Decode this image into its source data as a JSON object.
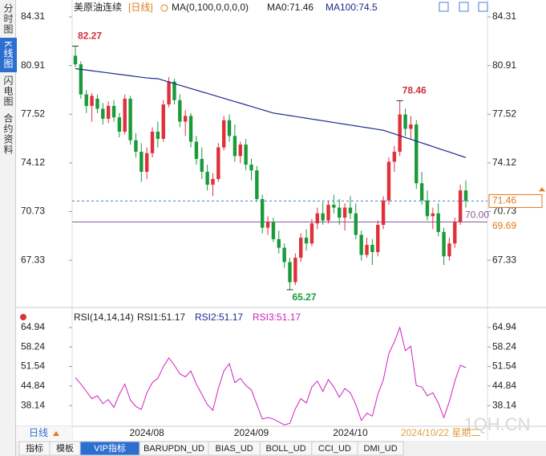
{
  "sidebar_tabs": [
    "分时图",
    "K线图",
    "闪电图",
    "合约资料"
  ],
  "chart_data": [
    {
      "type": "candlestick",
      "title": "美原油连续",
      "period": "[日线]",
      "indicator": "MA(0,100,0,0,0,0)",
      "ma_labels": [
        "MA0:71.46",
        "MA100:74.5"
      ],
      "categories": [
        null,
        null,
        null,
        null,
        null,
        null,
        null,
        null,
        null,
        null,
        null,
        null,
        null,
        null,
        null,
        null,
        null,
        null,
        null,
        null,
        null,
        null,
        null,
        null,
        null,
        null,
        null,
        null,
        null,
        null,
        null,
        null,
        null,
        null,
        null,
        null,
        null,
        null,
        null,
        null,
        null,
        null,
        null,
        null,
        null,
        null,
        null,
        null,
        null,
        null,
        null,
        null,
        null,
        null,
        null,
        null,
        null,
        null,
        null,
        null,
        null,
        null,
        null,
        null,
        null,
        null,
        null,
        null,
        null,
        null,
        null,
        null
      ],
      "xticks": [
        {
          "value": 13,
          "label": "2024/08"
        },
        {
          "value": 32,
          "label": "2024/09"
        },
        {
          "value": 50,
          "label": "2024/10"
        }
      ],
      "open": [
        81.6,
        81.0,
        78.9,
        78.1,
        78.6,
        77.9,
        77.2,
        78.1,
        77.3,
        76.3,
        78.6,
        75.7,
        74.9,
        73.5,
        74.8,
        76.3,
        75.8,
        78.2,
        79.8,
        78.5,
        77.0,
        77.4,
        75.6,
        74.4,
        73.5,
        72.6,
        73.0,
        75.2,
        77.1,
        76.0,
        74.6,
        75.4,
        74.0,
        73.6,
        71.6,
        69.6,
        70.0,
        68.8,
        68.2,
        67.2,
        65.8,
        67.5,
        68.9,
        68.5,
        69.9,
        70.6,
        70.1,
        71.2,
        71.0,
        70.3,
        71.0,
        70.6,
        69.1,
        67.7,
        68.4,
        67.9,
        69.8,
        71.5,
        74.2,
        74.9,
        77.5,
        76.5,
        76.8,
        72.7,
        71.5,
        70.4,
        70.6,
        69.3,
        67.6,
        68.5,
        70.0,
        72.2
      ],
      "high": [
        82.27,
        81.2,
        79.2,
        79.0,
        78.9,
        78.3,
        78.4,
        78.5,
        77.6,
        78.9,
        78.8,
        76.2,
        75.5,
        75.2,
        76.6,
        77.0,
        78.5,
        80.1,
        80.0,
        78.9,
        77.8,
        77.6,
        76.0,
        75.2,
        74.0,
        73.4,
        75.5,
        77.4,
        77.5,
        76.8,
        75.6,
        75.8,
        74.4,
        73.9,
        71.9,
        70.4,
        70.3,
        69.4,
        68.5,
        67.5,
        67.8,
        69.2,
        69.5,
        70.2,
        71.0,
        71.4,
        71.5,
        71.9,
        71.6,
        71.3,
        71.8,
        71.3,
        69.4,
        68.9,
        68.8,
        70.1,
        71.8,
        74.5,
        75.3,
        78.46,
        77.9,
        77.4,
        77.1,
        73.5,
        72.2,
        71.0,
        71.3,
        69.6,
        68.9,
        70.3,
        72.6,
        72.9
      ],
      "low": [
        80.8,
        78.6,
        77.6,
        77.0,
        77.6,
        76.8,
        76.9,
        77.0,
        75.9,
        76.1,
        75.4,
        74.5,
        72.8,
        73.0,
        74.5,
        75.2,
        75.6,
        78.0,
        78.2,
        76.6,
        76.0,
        75.2,
        74.0,
        73.0,
        72.2,
        71.8,
        72.8,
        75.0,
        75.6,
        74.2,
        74.1,
        73.6,
        72.9,
        71.4,
        69.2,
        69.1,
        68.6,
        67.8,
        66.8,
        65.27,
        65.6,
        67.2,
        68.0,
        68.3,
        69.5,
        69.8,
        69.9,
        70.6,
        69.8,
        69.4,
        70.2,
        68.8,
        67.3,
        67.5,
        67.0,
        67.6,
        69.5,
        71.2,
        73.5,
        74.6,
        76.0,
        75.8,
        72.3,
        71.2,
        70.1,
        69.5,
        69.0,
        67.0,
        67.3,
        68.2,
        69.8,
        71.0
      ],
      "close": [
        81.0,
        78.9,
        78.1,
        78.8,
        77.9,
        77.2,
        78.1,
        77.3,
        76.3,
        78.6,
        75.7,
        74.9,
        73.5,
        74.8,
        76.3,
        75.8,
        78.2,
        79.8,
        78.5,
        77.0,
        77.4,
        75.6,
        74.4,
        73.5,
        72.6,
        73.0,
        75.2,
        77.1,
        76.0,
        74.6,
        75.4,
        74.0,
        73.6,
        71.6,
        69.6,
        70.0,
        68.8,
        68.2,
        67.2,
        65.8,
        67.5,
        68.9,
        68.5,
        69.9,
        70.6,
        70.1,
        71.2,
        71.0,
        70.3,
        71.0,
        70.6,
        69.1,
        67.7,
        68.4,
        67.9,
        69.8,
        71.5,
        74.2,
        74.9,
        77.5,
        76.5,
        76.8,
        72.7,
        71.5,
        70.4,
        70.6,
        69.3,
        67.6,
        68.5,
        70.0,
        72.2,
        71.46
      ],
      "up_color": "#e0303a",
      "down_color": "#1a9a3a",
      "ma100": {
        "color": "#1e2a8c",
        "values": [
          80.7,
          80.65,
          80.6,
          80.55,
          80.5,
          80.45,
          80.4,
          80.35,
          80.3,
          80.25,
          80.2,
          80.15,
          80.1,
          80.05,
          80.02,
          80.0,
          79.88,
          79.77,
          79.65,
          79.54,
          79.43,
          79.31,
          79.2,
          79.08,
          78.97,
          78.86,
          78.74,
          78.63,
          78.51,
          78.4,
          78.29,
          78.17,
          78.06,
          77.94,
          77.83,
          77.71,
          77.6,
          77.54,
          77.48,
          77.42,
          77.36,
          77.3,
          77.24,
          77.18,
          77.12,
          77.06,
          77.0,
          76.94,
          76.88,
          76.82,
          76.76,
          76.7,
          76.64,
          76.58,
          76.52,
          76.46,
          76.4,
          76.27,
          76.15,
          76.02,
          75.89,
          75.77,
          75.64,
          75.51,
          75.39,
          75.26,
          75.13,
          75.0,
          74.88,
          74.75,
          74.62,
          74.5
        ]
      },
      "ylim": [
        64.2,
        85.04
      ],
      "yticks": [
        84.31,
        80.91,
        77.52,
        74.12,
        70.73,
        67.33
      ],
      "reference_line": {
        "value": 70,
        "label": "70.00",
        "color": "#8a5a9a"
      },
      "settlement": 69.69
    },
    {
      "type": "line",
      "title": "RSI(14,14,14)",
      "legend_labels": [
        {
          "text": "RSI1:51.17",
          "color": "#222222"
        },
        {
          "text": "RSI2:51.17",
          "color": "#1e2a8c"
        },
        {
          "text": "RSI3:51.17",
          "color": "#d020c0"
        }
      ],
      "values": [
        47.7,
        45.5,
        43.0,
        40.5,
        41.5,
        38.8,
        40.2,
        37.5,
        42.0,
        45.5,
        40.0,
        37.8,
        36.8,
        42.5,
        46.0,
        47.5,
        51.5,
        54.5,
        52.0,
        49.0,
        48.0,
        50.0,
        45.5,
        42.0,
        38.5,
        36.5,
        44.0,
        50.0,
        52.5,
        46.0,
        47.5,
        45.0,
        43.5,
        38.5,
        33.5,
        34.0,
        33.5,
        32.5,
        31.5,
        32.0,
        37.0,
        40.5,
        39.0,
        44.5,
        46.5,
        43.0,
        47.0,
        44.5,
        41.0,
        44.0,
        42.5,
        38.5,
        33.0,
        35.5,
        34.5,
        42.0,
        47.0,
        56.0,
        60.0,
        64.94,
        57.0,
        58.5,
        45.0,
        44.5,
        41.5,
        42.5,
        39.0,
        34.0,
        39.5,
        46.5,
        52.0,
        51.17
      ],
      "color": "#d020c0",
      "ylim": [
        31.0,
        67.14
      ],
      "yticks": [
        64.94,
        58.24,
        51.54,
        44.84,
        38.14
      ]
    }
  ],
  "toolbar": {
    "period": "日线",
    "date": "2024/10/22 星期二",
    "tabs": [
      "指标",
      "模板",
      "VIP指标",
      "BARUPDN_UD",
      "BIAS_UD",
      "BOLL_UD",
      "CCI_UD",
      "DMI_UD"
    ]
  },
  "watermark": "1QH.CN"
}
